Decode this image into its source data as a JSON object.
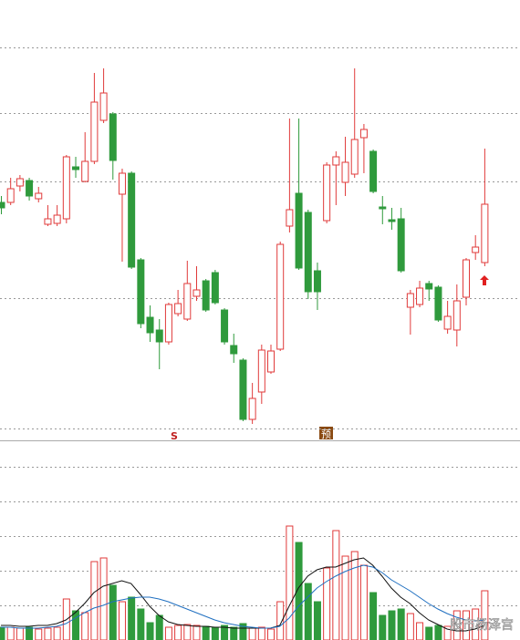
{
  "chart_data": [
    {
      "type": "candlestick",
      "up_color": "#e03a3a",
      "down_color": "#2f9a3c",
      "open": [
        24.8,
        24.8,
        26.6,
        27.2,
        25.2,
        22.4,
        22.5,
        23,
        28.7,
        27.1,
        29.3,
        33.8,
        34.5,
        25.7,
        28,
        18.5,
        12.2,
        10.8,
        9.5,
        12.6,
        12,
        14.5,
        16.2,
        17.1,
        13,
        9.1,
        7.5,
        1,
        4,
        6.2,
        8.7,
        22.2,
        25.8,
        23.7,
        17.3,
        22.8,
        28.9,
        27,
        27.9,
        31.9,
        30.4,
        24.3,
        22.9,
        23,
        13.3,
        13.6,
        15.9,
        15.5,
        10.9,
        10.8,
        14.4,
        19.3,
        18.2
      ],
      "high": [
        25.5,
        27.5,
        27.8,
        27.5,
        26.5,
        24.5,
        24.5,
        30,
        29.8,
        32.5,
        39,
        39.5,
        34.7,
        28.5,
        28.2,
        18.7,
        13.5,
        12,
        13.8,
        15.2,
        18.4,
        17.8,
        16.4,
        17.4,
        13.2,
        10.4,
        7.7,
        5,
        9.2,
        9.2,
        20.5,
        34,
        34,
        24,
        18.2,
        29.2,
        30.4,
        32,
        39.5,
        33.4,
        30.6,
        25.5,
        24.2,
        24.2,
        15.2,
        16.2,
        16.2,
        15.7,
        14,
        15.8,
        18.7,
        21.2,
        30.7
      ],
      "low": [
        23.5,
        24.5,
        26,
        25,
        24.8,
        22.2,
        22.2,
        22.5,
        27.5,
        27,
        29,
        33.5,
        27.3,
        18.3,
        17.5,
        11,
        9.5,
        6.5,
        9.2,
        12.3,
        11.8,
        14,
        12.8,
        13.6,
        9.2,
        7.2,
        0.8,
        0.5,
        2.7,
        6,
        8.5,
        21.5,
        17.4,
        14.2,
        13,
        22.5,
        24.5,
        25.5,
        27.5,
        28,
        25.8,
        22.4,
        21.8,
        17.1,
        10.3,
        13.3,
        14,
        11.7,
        10.4,
        9,
        13.5,
        18.5,
        17.8
      ],
      "close": [
        24.2,
        26.3,
        27.4,
        25.5,
        25.8,
        23,
        23.4,
        29.8,
        28.4,
        29.3,
        35.8,
        36.8,
        29.4,
        28,
        17.7,
        11.5,
        10.5,
        9.5,
        13.6,
        13.7,
        15.9,
        15.2,
        13,
        13.8,
        9.5,
        8.2,
        1,
        3.3,
        8.6,
        8.5,
        20.2,
        24,
        17.6,
        15,
        15,
        28.9,
        29.8,
        29.2,
        31.7,
        32.8,
        26,
        24.1,
        22.7,
        17.3,
        14.8,
        15.4,
        15.3,
        11.9,
        12.3,
        14,
        18.5,
        19.9,
        24.6
      ],
      "ylim": [
        0,
        47
      ],
      "yticks": [
        0,
        14.3,
        27.1,
        34.6,
        41.8
      ],
      "grid": true,
      "annotations": [
        "S",
        "预"
      ]
    },
    {
      "type": "bar",
      "ylim": [
        0,
        110
      ],
      "yticks": [
        19,
        38,
        57,
        76,
        95
      ],
      "grid": true,
      "values": [
        7,
        7,
        6.5,
        7,
        6,
        6.5,
        7,
        22.5,
        16,
        15,
        43,
        45,
        30,
        21,
        23.5,
        17,
        9.5,
        13.5,
        7,
        8,
        8.5,
        8,
        7.5,
        7,
        8,
        7,
        9,
        6.5,
        7,
        6,
        21,
        62.5,
        53.5,
        31,
        21,
        39.5,
        60,
        46,
        48.5,
        41,
        26,
        13.5,
        16,
        17,
        14.5,
        9.5,
        7,
        8,
        7.5,
        16,
        16,
        17,
        27
      ],
      "series": [
        {
          "color": "#111111",
          "values": [
            8,
            8,
            7.5,
            7.5,
            8,
            8,
            9,
            11,
            15,
            20,
            26,
            29.5,
            31,
            32.5,
            31,
            25,
            18.5,
            13.5,
            10,
            8.5,
            8,
            7.5,
            7.5,
            7,
            7,
            6.5,
            6.5,
            6.5,
            6.5,
            6.5,
            8,
            18.5,
            28.5,
            35,
            38.5,
            40,
            40,
            42,
            44,
            45,
            41,
            35,
            28.5,
            23.5,
            20,
            15,
            11,
            8.5,
            6,
            5,
            5,
            6,
            8
          ]
        },
        {
          "color": "#1f6fc0",
          "values": [
            7,
            7,
            6.5,
            6.5,
            6.5,
            7,
            7.5,
            9,
            12,
            15,
            17.5,
            19,
            21,
            22,
            23,
            23.5,
            23.5,
            22.5,
            21,
            19,
            17,
            15,
            13,
            11,
            9.5,
            8.5,
            7.5,
            7,
            6.5,
            6.5,
            7.5,
            12,
            18.5,
            23.5,
            28.5,
            32,
            35,
            37.5,
            39.5,
            41,
            40,
            37,
            33,
            30,
            27,
            23.5,
            20,
            17,
            14.5,
            12.5,
            11,
            10.5,
            11
          ]
        }
      ],
      "watermark": "股市杨泽宫"
    }
  ]
}
